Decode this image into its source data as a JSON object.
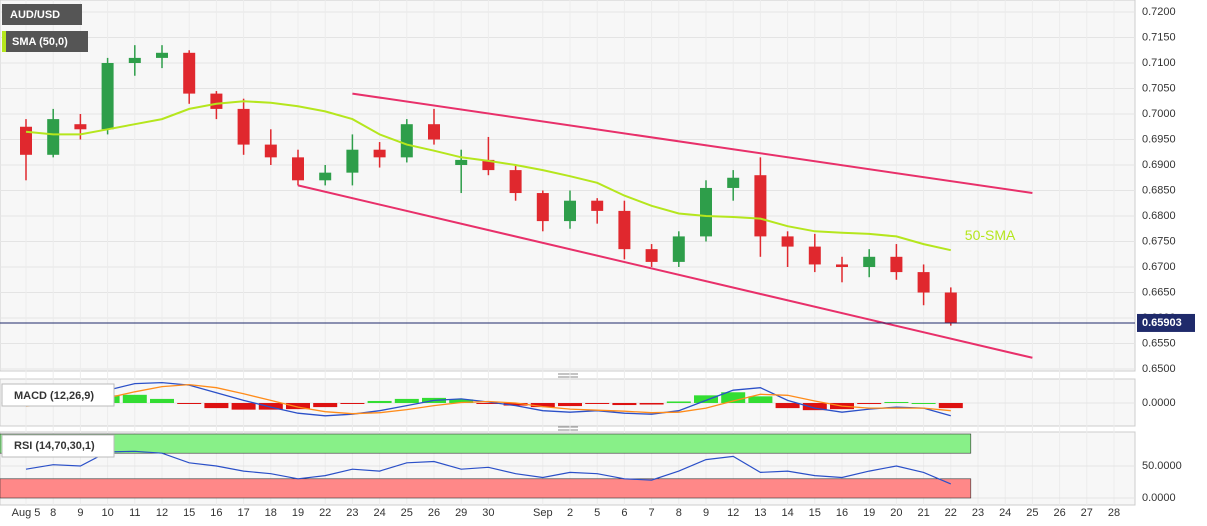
{
  "chart_data": [
    {
      "type": "candlestick",
      "symbol": "AUD/USD",
      "indicator_label": "SMA (50,0)",
      "categories": [
        "Aug 5",
        "8",
        "9",
        "10",
        "11",
        "12",
        "15",
        "16",
        "17",
        "18",
        "19",
        "22",
        "23",
        "24",
        "25",
        "26",
        "29",
        "30",
        null,
        "Sep",
        "2",
        "5",
        "6",
        "7",
        "8",
        "9",
        "12",
        "13",
        "14",
        "15",
        "16",
        "19",
        "20",
        "21",
        "22",
        "23",
        "24",
        "25",
        "26",
        "27",
        "28"
      ],
      "open": [
        0.6975,
        0.692,
        0.698,
        0.697,
        0.71,
        0.711,
        0.712,
        0.704,
        0.701,
        0.694,
        0.6915,
        0.687,
        0.6885,
        0.693,
        0.6915,
        0.698,
        0.69,
        0.691,
        0.689,
        0.6845,
        0.679,
        0.683,
        0.681,
        0.6735,
        0.671,
        0.676,
        0.6855,
        0.688,
        0.676,
        0.674,
        0.6705,
        0.67,
        0.672,
        0.669,
        0.665,
        null,
        null,
        null,
        null,
        null,
        null
      ],
      "high": [
        0.699,
        0.701,
        0.7,
        0.711,
        0.7135,
        0.7135,
        0.7125,
        0.7045,
        0.703,
        0.697,
        0.693,
        0.69,
        0.696,
        0.6945,
        0.699,
        0.701,
        0.693,
        0.6955,
        0.69,
        0.685,
        0.685,
        0.6835,
        0.683,
        0.6745,
        0.677,
        0.687,
        0.689,
        0.6915,
        0.677,
        0.6765,
        0.672,
        0.6735,
        0.6745,
        0.6705,
        0.666,
        null,
        null,
        null,
        null,
        null,
        null
      ],
      "low": [
        0.687,
        0.6915,
        0.695,
        0.696,
        0.7075,
        0.709,
        0.702,
        0.699,
        0.692,
        0.69,
        0.686,
        0.686,
        0.686,
        0.6895,
        0.6905,
        0.694,
        0.6845,
        0.688,
        0.683,
        0.677,
        0.6775,
        0.6785,
        0.6715,
        0.67,
        0.67,
        0.675,
        0.683,
        0.672,
        0.67,
        0.669,
        0.667,
        0.668,
        0.6675,
        0.6625,
        0.6585,
        null,
        null,
        null,
        null,
        null,
        null
      ],
      "close": [
        0.692,
        0.699,
        0.697,
        0.71,
        0.711,
        0.712,
        0.704,
        0.701,
        0.694,
        0.6915,
        0.687,
        0.6885,
        0.693,
        0.6915,
        0.698,
        0.695,
        0.691,
        0.689,
        0.6845,
        0.679,
        0.683,
        0.681,
        0.6735,
        0.671,
        0.676,
        0.6855,
        0.6875,
        0.676,
        0.674,
        0.6705,
        0.67,
        0.672,
        0.669,
        0.665,
        0.659,
        null,
        null,
        null,
        null,
        null,
        null
      ],
      "up_color": "#2e9e4a",
      "down_color": "#e0282e",
      "series": [
        {
          "name": "50-SMA",
          "color": "#b5e61d",
          "values": [
            0.6965,
            0.696,
            0.696,
            0.697,
            0.698,
            0.699,
            0.701,
            0.702,
            0.7025,
            0.7022,
            0.7015,
            0.7005,
            0.699,
            0.696,
            0.694,
            0.6928,
            0.6915,
            0.6908,
            0.69,
            0.689,
            0.6878,
            0.6865,
            0.684,
            0.682,
            0.6805,
            0.68,
            0.6798,
            0.6795,
            0.678,
            0.677,
            0.6767,
            0.6765,
            0.676,
            0.6745,
            0.6733,
            null,
            null,
            null,
            null,
            null,
            null
          ]
        }
      ],
      "ylim": [
        0.65,
        0.72
      ],
      "yticks": [
        {
          "value": 0.72,
          "label": "0.7200"
        },
        {
          "value": 0.715,
          "label": "0.7150"
        },
        {
          "value": 0.71,
          "label": "0.7100"
        },
        {
          "value": 0.705,
          "label": "0.7050"
        },
        {
          "value": 0.7,
          "label": "0.7000"
        },
        {
          "value": 0.695,
          "label": "0.6950"
        },
        {
          "value": 0.69,
          "label": "0.6900"
        },
        {
          "value": 0.685,
          "label": "0.6850"
        },
        {
          "value": 0.68,
          "label": "0.6800"
        },
        {
          "value": 0.675,
          "label": "0.6750"
        },
        {
          "value": 0.67,
          "label": "0.6700"
        },
        {
          "value": 0.665,
          "label": "0.6650"
        },
        {
          "value": 0.66,
          "label": "0.6600"
        },
        {
          "value": 0.655,
          "label": "0.6550"
        },
        {
          "value": 0.65,
          "label": "0.6500"
        }
      ],
      "last_price": 0.65903,
      "last_price_color": "#1f2a6b",
      "channel": {
        "color": "#e8306a",
        "lines": [
          {
            "from": [
              12,
              0.704
            ],
            "to": [
              37,
              0.6845
            ]
          },
          {
            "from": [
              10,
              0.686
            ],
            "to": [
              37,
              0.6522
            ]
          }
        ]
      },
      "grid": true
    },
    {
      "type": "macd",
      "title": "MACD (12,26,9)",
      "ylim": [
        -0.0045,
        0.0045
      ],
      "yticks": [
        {
          "value": 0,
          "label": "0.0000"
        }
      ],
      "positive_color": "#33dd33",
      "negative_color": "#dd1111",
      "histogram": [
        0.0001,
        0.0005,
        0.0005,
        0.0015,
        0.0016,
        0.0008,
        -0.0001,
        -0.001,
        -0.0013,
        -0.0013,
        -0.0012,
        -0.0008,
        -0.0001,
        0.0004,
        0.0008,
        0.001,
        0.0007,
        -0.0001,
        -0.0005,
        -0.0008,
        -0.0006,
        -0.0001,
        -0.0004,
        -0.0003,
        0.0003,
        0.0015,
        0.0021,
        0.0013,
        -0.001,
        -0.0014,
        -0.0012,
        -0.0002,
        0.0002,
        0,
        -0.001,
        null,
        null,
        null,
        null,
        null,
        null
      ],
      "series": [
        {
          "color": "#2b50c8",
          "values": [
            -0.0005,
            0.0002,
            0.0005,
            0.0025,
            0.0038,
            0.004,
            0.0035,
            0.002,
            0.0005,
            -0.0008,
            -0.002,
            -0.0025,
            -0.0022,
            -0.0015,
            -0.0005,
            0.0005,
            0.0008,
            0.0002,
            -0.0005,
            -0.0015,
            -0.0018,
            -0.0015,
            -0.002,
            -0.0022,
            -0.0015,
            0.0005,
            0.0025,
            0.003,
            0.0005,
            -0.001,
            -0.0018,
            -0.0012,
            -0.0008,
            -0.001,
            -0.0025,
            null,
            null,
            null,
            null,
            null,
            null
          ]
        },
        {
          "color": "#ff8c1a",
          "values": [
            -0.0006,
            -0.0003,
            0,
            0.001,
            0.0022,
            0.0032,
            0.0036,
            0.003,
            0.0018,
            0.0005,
            -0.0008,
            -0.0017,
            -0.0021,
            -0.0019,
            -0.0013,
            -0.0005,
            0.0001,
            0.0003,
            0,
            -0.0007,
            -0.0012,
            -0.0014,
            -0.0016,
            -0.0019,
            -0.0018,
            -0.001,
            0.0004,
            0.0017,
            0.0015,
            0.0004,
            -0.0006,
            -0.001,
            -0.001,
            -0.001,
            -0.0015,
            null,
            null,
            null,
            null,
            null,
            null
          ]
        }
      ]
    },
    {
      "type": "rsi",
      "title": "RSI (14,70,30,1)",
      "ylim": [
        0,
        100
      ],
      "yticks": [
        {
          "value": 50,
          "label": "50.0000"
        },
        {
          "value": 0,
          "label": "0.0000"
        }
      ],
      "overbought": 70,
      "oversold": 30,
      "overbought_color": "#88f088",
      "oversold_color": "#ff8888",
      "color": "#2b50c8",
      "values": [
        45,
        52,
        50,
        72,
        73,
        70,
        55,
        50,
        42,
        38,
        30,
        35,
        45,
        42,
        55,
        57,
        45,
        48,
        38,
        32,
        40,
        38,
        30,
        28,
        42,
        60,
        65,
        40,
        42,
        35,
        32,
        42,
        50,
        40,
        22,
        null,
        null,
        null,
        null,
        null,
        null
      ]
    }
  ]
}
